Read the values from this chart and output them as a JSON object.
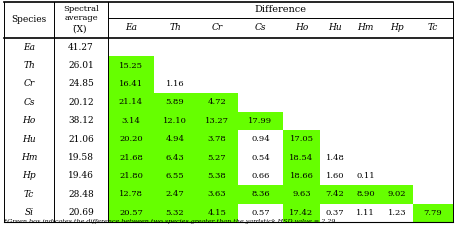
{
  "rows": [
    {
      "species": "Ea",
      "avg": "41.27",
      "values": [
        null,
        null,
        null,
        null,
        null,
        null,
        null,
        null,
        null
      ]
    },
    {
      "species": "Th",
      "avg": "26.01",
      "values": [
        "15.25",
        null,
        null,
        null,
        null,
        null,
        null,
        null,
        null
      ]
    },
    {
      "species": "Cr",
      "avg": "24.85",
      "values": [
        "16.41",
        "1.16",
        null,
        null,
        null,
        null,
        null,
        null,
        null
      ]
    },
    {
      "species": "Cs",
      "avg": "20.12",
      "values": [
        "21.14",
        "5.89",
        "4.72",
        null,
        null,
        null,
        null,
        null,
        null
      ]
    },
    {
      "species": "Ho",
      "avg": "38.12",
      "values": [
        "3.14",
        "12.10",
        "13.27",
        "17.99",
        null,
        null,
        null,
        null,
        null
      ]
    },
    {
      "species": "Hu",
      "avg": "21.06",
      "values": [
        "20.20",
        "4.94",
        "3.78",
        "0.94",
        "17.05",
        null,
        null,
        null,
        null
      ]
    },
    {
      "species": "Hm",
      "avg": "19.58",
      "values": [
        "21.68",
        "6.43",
        "5.27",
        "0.54",
        "18.54",
        "1.48",
        null,
        null,
        null
      ]
    },
    {
      "species": "Hp",
      "avg": "19.46",
      "values": [
        "21.80",
        "6.55",
        "5.38",
        "0.66",
        "18.66",
        "1.60",
        "0.11",
        null,
        null
      ]
    },
    {
      "species": "Tc",
      "avg": "28.48",
      "values": [
        "12.78",
        "2.47",
        "3.63",
        "8.36",
        "9.63",
        "7.42",
        "8.90",
        "9.02",
        null
      ]
    },
    {
      "species": "Si",
      "avg": "20.69",
      "values": [
        "20.57",
        "5.32",
        "4.15",
        "0.57",
        "17.42",
        "0.37",
        "1.11",
        "1.23",
        "7.79"
      ]
    }
  ],
  "diff_cols": [
    "Ea",
    "Th",
    "Cr",
    "Cs",
    "Ho",
    "Hu",
    "Hm",
    "Hp",
    "Tc"
  ],
  "green_threshold": 2.29,
  "green_color": "#66ff00",
  "footnote": "*Green box indicates the difference between two species greater than the yardstick HSD value = 2.29",
  "bg_color": "#ffffff",
  "figw": 4.74,
  "figh": 2.34,
  "dpi": 100
}
